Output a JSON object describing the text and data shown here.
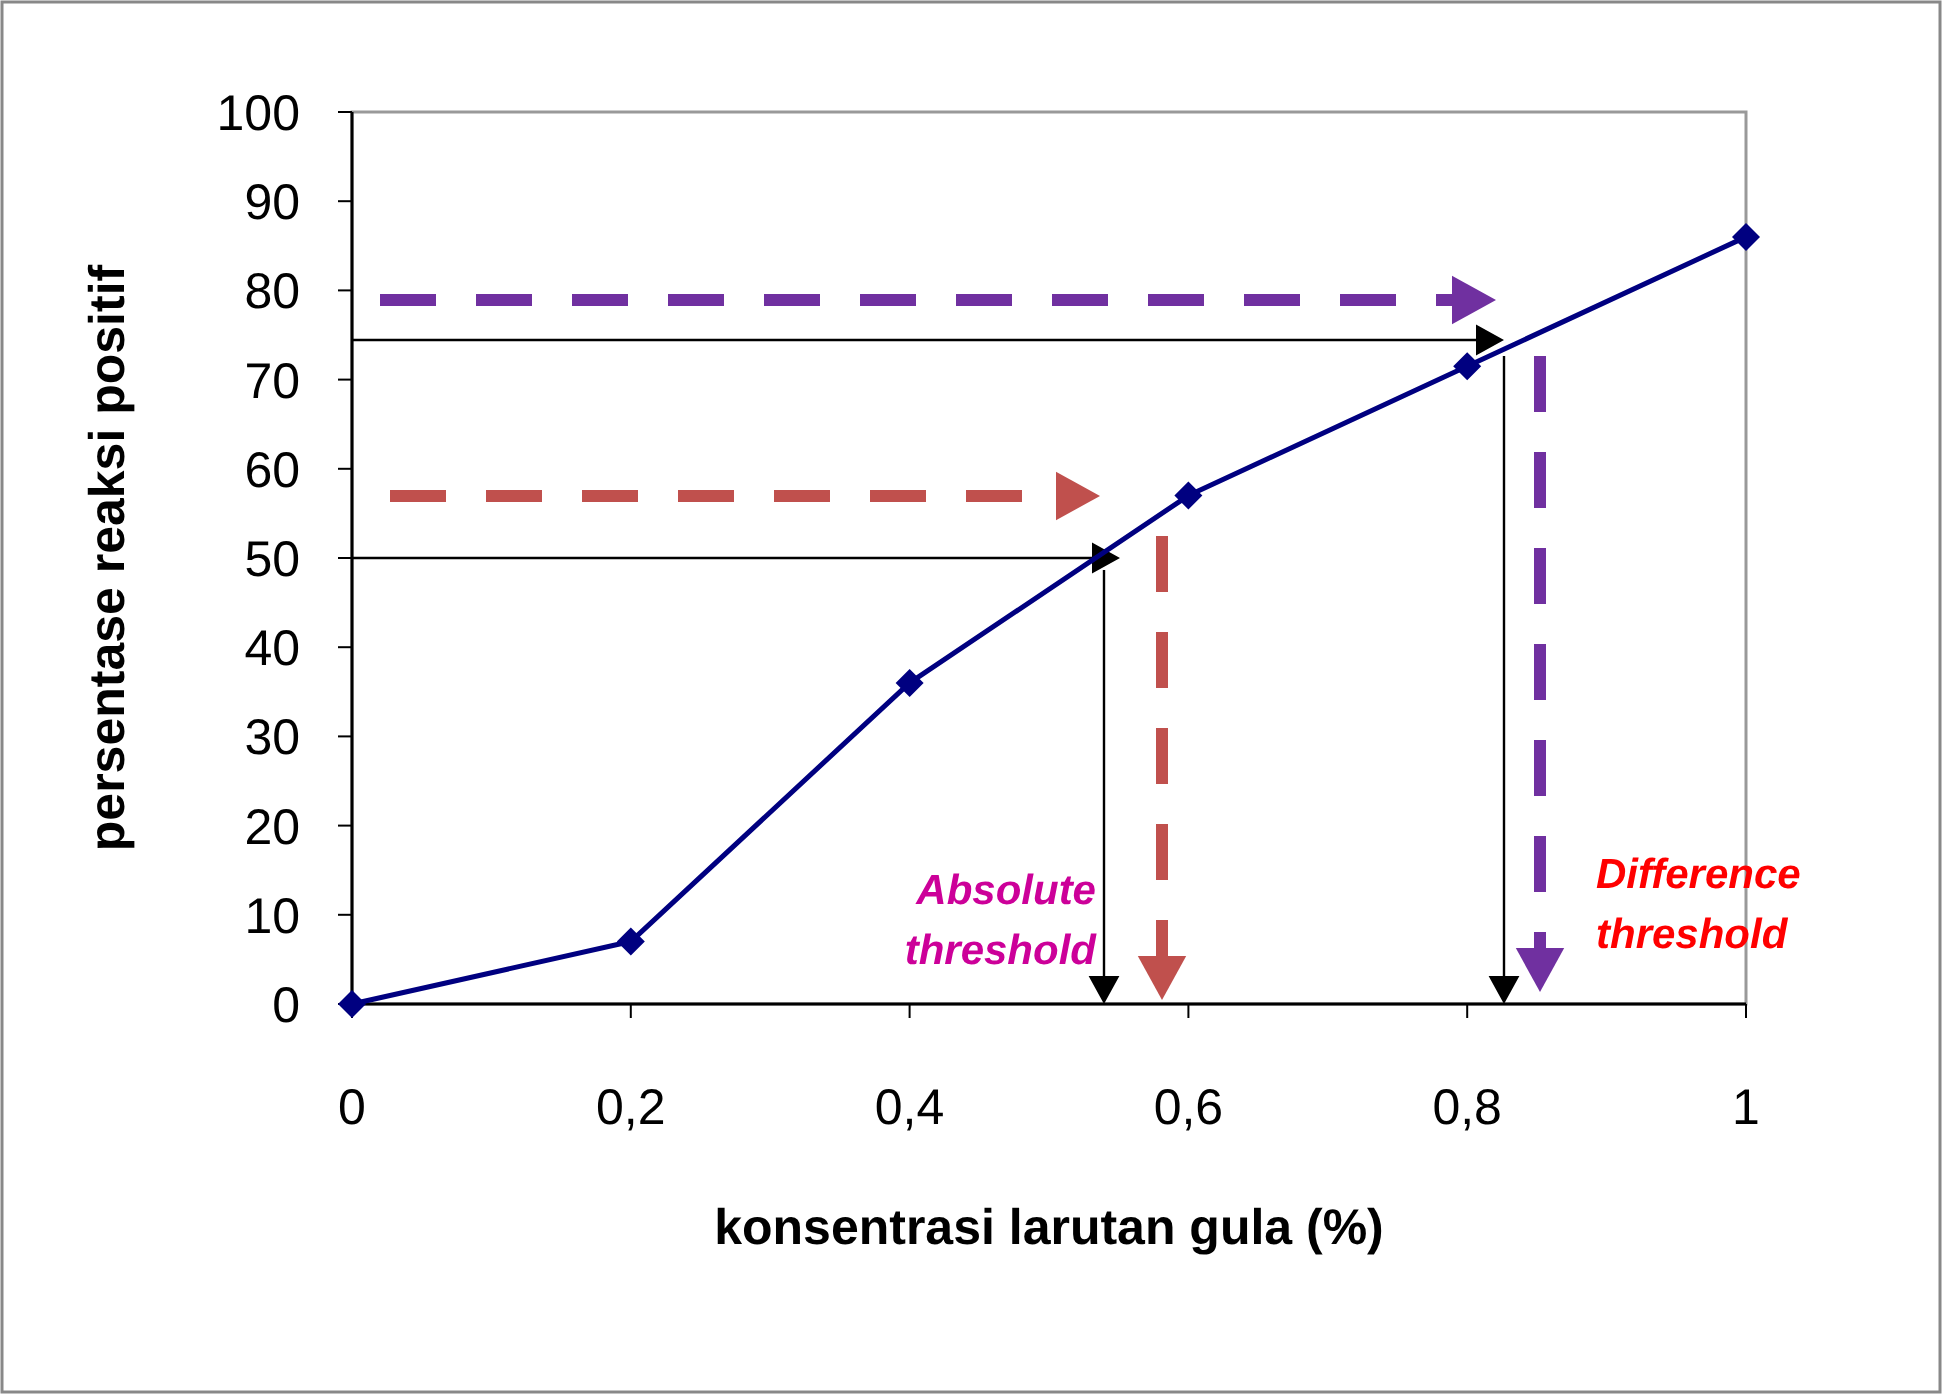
{
  "chart_data": {
    "type": "line",
    "xlabel": "konsentrasi larutan gula (%)",
    "ylabel": "persentase reaksi positif",
    "x": [
      0,
      0.2,
      0.4,
      0.6,
      0.8,
      1
    ],
    "series": [
      {
        "color": "#000080",
        "values": [
          0,
          7,
          36,
          57,
          71.5,
          86
        ],
        "marker": "diamond"
      }
    ],
    "xlim": [
      0,
      1
    ],
    "xticks": [
      0,
      {
        "value": 0.2,
        "label": "0,2"
      },
      {
        "value": 0.4,
        "label": "0,4"
      },
      {
        "value": 0.6,
        "label": "0,6"
      },
      {
        "value": 0.8,
        "label": "0,8"
      },
      1
    ],
    "ylim": [
      0,
      100
    ],
    "yticks": [
      0,
      10,
      20,
      30,
      40,
      50,
      60,
      70,
      80,
      90,
      100
    ],
    "line_style": "solid",
    "grid": false,
    "annotations": [
      "Absolute threshold",
      "Difference threshold"
    ]
  }
}
